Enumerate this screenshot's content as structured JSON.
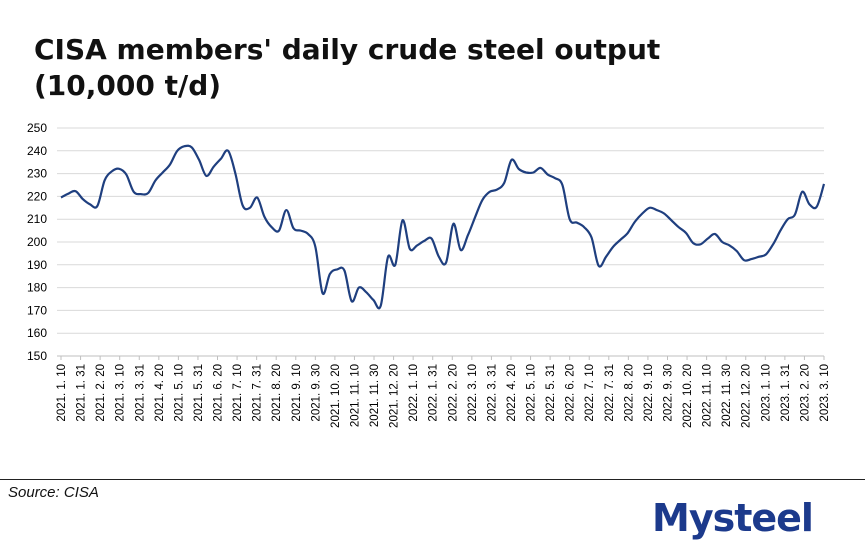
{
  "chart_data": {
    "type": "line",
    "title": "CISA members' daily crude steel output",
    "subtitle": "(10,000 t/d)",
    "xlabel": "",
    "ylabel": "",
    "ylim": [
      150,
      250
    ],
    "yticks": [
      "250",
      "240",
      "230",
      "220",
      "210",
      "200",
      "190",
      "180",
      "170",
      "160",
      "150"
    ],
    "grid": true,
    "legend": "none",
    "line_color": "#1f3f7f",
    "xtick_labels": [
      "2021. 1. 10",
      "2021. 1. 31",
      "2021. 2. 20",
      "2021. 3. 10",
      "2021. 3. 31",
      "2021. 4. 20",
      "2021. 5. 10",
      "2021. 5. 31",
      "2021. 6. 20",
      "2021. 7. 10",
      "2021. 7. 31",
      "2021. 8. 20",
      "2021. 9. 10",
      "2021. 9. 30",
      "2021. 10. 20",
      "2021. 11. 10",
      "2021. 11. 30",
      "2021. 12. 20",
      "2022. 1. 10",
      "2022. 1. 31",
      "2022. 2. 20",
      "2022. 3. 10",
      "2022. 3. 31",
      "2022. 4. 20",
      "2022. 5. 10",
      "2022. 5. 31",
      "2022. 6. 20",
      "2022. 7. 10",
      "2022. 7. 31",
      "2022. 8. 20",
      "2022. 9. 10",
      "2022. 9. 30",
      "2022. 10. 20",
      "2022. 11. 10",
      "2022. 11. 30",
      "2022. 12. 20",
      "2023. 1. 10",
      "2023. 1. 31",
      "2023. 2. 20",
      "2023. 3. 10"
    ],
    "series": [
      {
        "values": [
          219.5,
          221.2,
          222.3,
          218.8,
          216.5,
          215.8,
          227.0,
          231.0,
          232.1,
          229.5,
          222.0,
          221.0,
          221.5,
          227.0,
          230.5,
          234.0,
          240.0,
          242.0,
          241.5,
          236.0,
          229.0,
          233.0,
          236.5,
          240.0,
          230.0,
          216.0,
          215.0,
          219.5,
          211.0,
          206.5,
          205.0,
          214.0,
          206.0,
          205.0,
          203.5,
          198.0,
          177.5,
          186.0,
          188.0,
          187.5,
          174.0,
          180.0,
          178.0,
          174.5,
          172.0,
          193.5,
          190.0,
          209.5,
          197.0,
          198.5,
          200.5,
          201.5,
          193.5,
          191.0,
          208.0,
          196.5,
          203.0,
          211.0,
          218.5,
          222.0,
          223.0,
          226.0,
          236.0,
          232.0,
          230.5,
          230.5,
          232.5,
          229.5,
          228.0,
          225.0,
          210.0,
          208.5,
          206.5,
          202.0,
          189.5,
          193.5,
          198.0,
          201.0,
          204.0,
          209.0,
          212.5,
          215.0,
          214.0,
          212.5,
          209.5,
          206.5,
          204.0,
          199.5,
          199.0,
          201.5,
          203.5,
          200.0,
          198.5,
          196.0,
          192.0,
          192.5,
          193.5,
          194.5,
          199.0,
          205.0,
          210.0,
          212.0,
          222.0,
          216.5,
          215.5,
          225.5
        ]
      }
    ]
  },
  "footer": {
    "source": "Source: CISA",
    "logo": "Mysteel"
  }
}
